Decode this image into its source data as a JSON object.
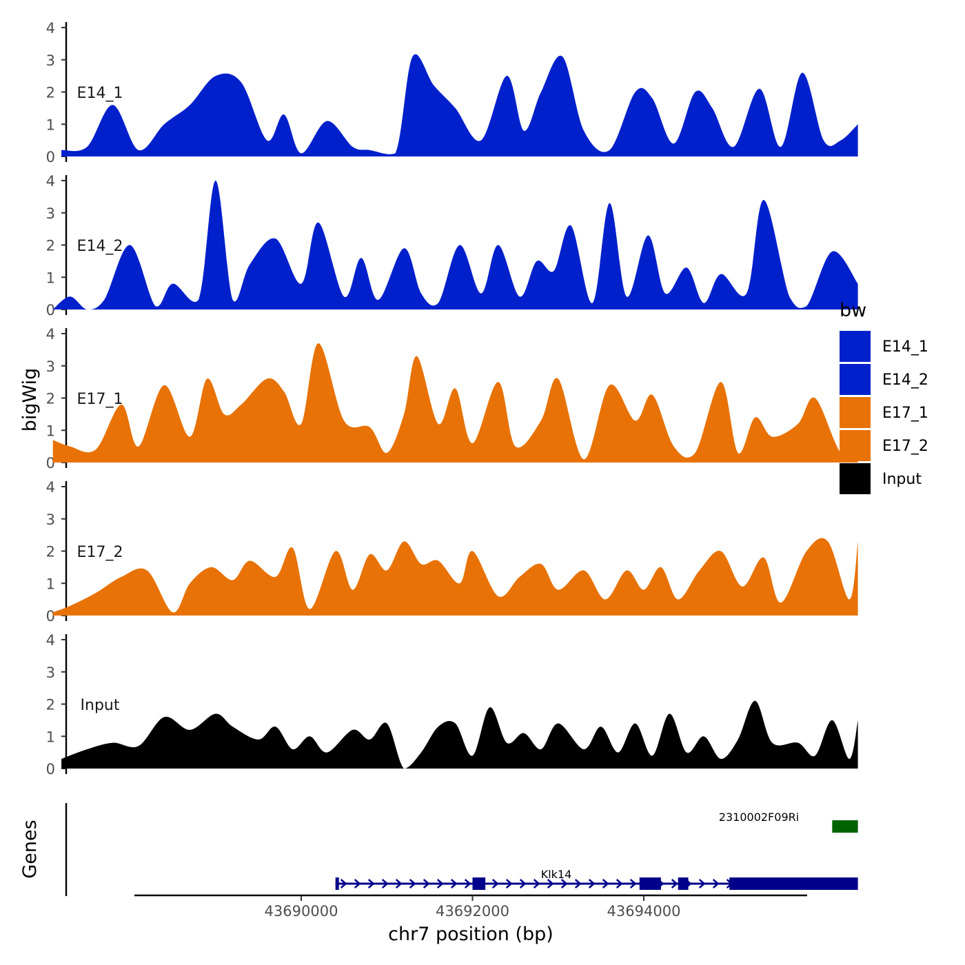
{
  "chart_data": {
    "type": "area",
    "title": "",
    "ylabel": "bigWig",
    "xlabel": "chr7 position (bp)",
    "genes_label": "Genes",
    "ylim": [
      0,
      4
    ],
    "yticks": [
      0,
      1,
      2,
      3,
      4
    ],
    "xlim": [
      43686800,
      43696700
    ],
    "xticks": [
      43690000,
      43692000,
      43694000
    ],
    "x_tick_labels": [
      "43690000",
      "43692000",
      "43694000"
    ],
    "legend": {
      "title": "bw",
      "position": "right",
      "entries": [
        {
          "name": "E14_1",
          "color": "#0020CC"
        },
        {
          "name": "E14_2",
          "color": "#0020CC"
        },
        {
          "name": "E17_1",
          "color": "#E87205"
        },
        {
          "name": "E17_2",
          "color": "#E87205"
        },
        {
          "name": "Input",
          "color": "#000000"
        }
      ]
    },
    "series": [
      {
        "name": "E14_1",
        "color": "#0020CC",
        "x": [
          43687200,
          43687500,
          43687800,
          43688100,
          43688400,
          43688700,
          43689000,
          43689300,
          43689600,
          43689800,
          43690000,
          43690300,
          43690600,
          43690800,
          43691100,
          43691300,
          43691550,
          43691800,
          43692100,
          43692400,
          43692600,
          43692800,
          43693050,
          43693300,
          43693600,
          43693900,
          43694100,
          43694350,
          43694600,
          43694800,
          43695050,
          43695350,
          43695600,
          43695850,
          43696100,
          43696300,
          43696500
        ],
        "values": [
          0.2,
          0.3,
          1.6,
          0.2,
          1.0,
          1.6,
          2.5,
          2.3,
          0.5,
          1.3,
          0.1,
          1.1,
          0.3,
          0.2,
          0.1,
          3.1,
          2.2,
          1.5,
          0.5,
          2.5,
          0.8,
          2.0,
          3.1,
          0.8,
          0.2,
          2.0,
          1.8,
          0.4,
          2.0,
          1.5,
          0.3,
          2.1,
          0.3,
          2.6,
          0.5,
          0.5,
          1.0
        ]
      },
      {
        "name": "E14_2",
        "color": "#0020CC",
        "x": [
          43687100,
          43687300,
          43687500,
          43687700,
          43688000,
          43688300,
          43688500,
          43688800,
          43689000,
          43689200,
          43689400,
          43689700,
          43690000,
          43690200,
          43690500,
          43690700,
          43690900,
          43691200,
          43691400,
          43691600,
          43691850,
          43692100,
          43692300,
          43692550,
          43692750,
          43692950,
          43693150,
          43693400,
          43693600,
          43693800,
          43694050,
          43694250,
          43694500,
          43694700,
          43694900,
          43695200,
          43695400,
          43695700,
          43695900,
          43696200,
          43696500
        ],
        "values": [
          0.0,
          0.4,
          0.0,
          0.3,
          2.0,
          0.1,
          0.8,
          0.3,
          4.0,
          0.3,
          1.4,
          2.2,
          0.8,
          2.7,
          0.4,
          1.6,
          0.3,
          1.9,
          0.5,
          0.2,
          2.0,
          0.5,
          2.0,
          0.4,
          1.5,
          1.2,
          2.6,
          0.2,
          3.3,
          0.4,
          2.3,
          0.5,
          1.3,
          0.2,
          1.1,
          0.5,
          3.4,
          0.4,
          0.1,
          1.8,
          0.8
        ]
      },
      {
        "name": "E17_1",
        "color": "#E87205",
        "x": [
          43687100,
          43687300,
          43687600,
          43687900,
          43688100,
          43688400,
          43688700,
          43688900,
          43689100,
          43689300,
          43689600,
          43689800,
          43690000,
          43690200,
          43690500,
          43690800,
          43691000,
          43691200,
          43691350,
          43691600,
          43691800,
          43692000,
          43692300,
          43692500,
          43692800,
          43693000,
          43693300,
          43693600,
          43693900,
          43694100,
          43694350,
          43694600,
          43694900,
          43695100,
          43695300,
          43695500,
          43695800,
          43696000,
          43696300,
          43696500
        ],
        "values": [
          0.7,
          0.5,
          0.4,
          1.8,
          0.5,
          2.4,
          0.8,
          2.6,
          1.5,
          1.8,
          2.6,
          2.2,
          1.2,
          3.7,
          1.3,
          1.1,
          0.3,
          1.5,
          3.3,
          1.2,
          2.3,
          0.6,
          2.5,
          0.5,
          1.3,
          2.6,
          0.1,
          2.4,
          1.3,
          2.1,
          0.5,
          0.3,
          2.5,
          0.3,
          1.4,
          0.8,
          1.2,
          2.0,
          0.3,
          0.5
        ]
      },
      {
        "name": "E17_2",
        "color": "#E87205",
        "x": [
          43687100,
          43687300,
          43687600,
          43687900,
          43688200,
          43688500,
          43688700,
          43688950,
          43689200,
          43689400,
          43689700,
          43689900,
          43690100,
          43690400,
          43690600,
          43690800,
          43691000,
          43691200,
          43691400,
          43691600,
          43691850,
          43692000,
          43692300,
          43692550,
          43692800,
          43693000,
          43693300,
          43693550,
          43693800,
          43694000,
          43694200,
          43694400,
          43694650,
          43694900,
          43695150,
          43695400,
          43695600,
          43695900,
          43696150,
          43696400,
          43696500
        ],
        "values": [
          0.1,
          0.3,
          0.7,
          1.2,
          1.4,
          0.1,
          1.0,
          1.5,
          1.1,
          1.7,
          1.2,
          2.1,
          0.2,
          2.0,
          0.8,
          1.9,
          1.4,
          2.3,
          1.6,
          1.7,
          1.0,
          2.0,
          0.6,
          1.2,
          1.6,
          0.8,
          1.4,
          0.5,
          1.4,
          0.8,
          1.5,
          0.5,
          1.4,
          2.0,
          0.9,
          1.8,
          0.4,
          2.0,
          2.3,
          0.5,
          2.3
        ]
      },
      {
        "name": "Input",
        "color": "#000000",
        "x": [
          43687200,
          43687500,
          43687800,
          43688100,
          43688400,
          43688700,
          43689000,
          43689200,
          43689500,
          43689700,
          43689900,
          43690100,
          43690300,
          43690600,
          43690800,
          43691000,
          43691200,
          43691400,
          43691600,
          43691800,
          43692000,
          43692200,
          43692400,
          43692600,
          43692800,
          43693000,
          43693300,
          43693500,
          43693700,
          43693900,
          43694100,
          43694300,
          43694500,
          43694700,
          43694900,
          43695100,
          43695300,
          43695500,
          43695800,
          43696000,
          43696200,
          43696400,
          43696500
        ],
        "values": [
          0.3,
          0.6,
          0.8,
          0.7,
          1.6,
          1.2,
          1.7,
          1.3,
          0.9,
          1.3,
          0.6,
          1.0,
          0.5,
          1.2,
          0.9,
          1.4,
          0.0,
          0.5,
          1.3,
          1.4,
          0.4,
          1.9,
          0.8,
          1.1,
          0.6,
          1.4,
          0.6,
          1.3,
          0.5,
          1.4,
          0.4,
          1.7,
          0.5,
          1.0,
          0.3,
          0.9,
          2.1,
          0.8,
          0.8,
          0.4,
          1.5,
          0.3,
          1.5
        ]
      }
    ],
    "genes": [
      {
        "name": "2310002F09Ri",
        "color": "#006400",
        "strand": "-",
        "start": 43696200,
        "end": 43696500,
        "exons": [
          [
            43696200,
            43696500
          ]
        ]
      },
      {
        "name": "Klk14",
        "color": "#00008B",
        "strand": "+",
        "start": 43690400,
        "end": 43696500,
        "exons": [
          [
            43690400,
            43690430
          ],
          [
            43692000,
            43692150
          ],
          [
            43693950,
            43694200
          ],
          [
            43694400,
            43694520
          ],
          [
            43695000,
            43696500
          ]
        ]
      }
    ]
  }
}
